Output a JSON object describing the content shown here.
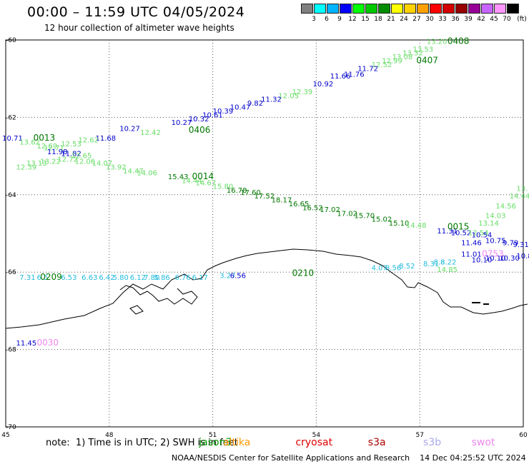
{
  "header": {
    "title": "00:00 – 11:59 UTC 04/05/2024",
    "subtitle": "12 hour collection of altimeter wave heights"
  },
  "legend": {
    "unit_label": "(ft)",
    "bins": [
      {
        "label": "3",
        "color": "#808080"
      },
      {
        "label": "6",
        "color": "#00ffff"
      },
      {
        "label": "9",
        "color": "#00b4ff"
      },
      {
        "label": "12",
        "color": "#0000ff"
      },
      {
        "label": "15",
        "color": "#00ff00"
      },
      {
        "label": "18",
        "color": "#00c800"
      },
      {
        "label": "21",
        "color": "#008c00"
      },
      {
        "label": "24",
        "color": "#ffff00"
      },
      {
        "label": "27",
        "color": "#ffd200"
      },
      {
        "label": "30",
        "color": "#ffa000"
      },
      {
        "label": "33",
        "color": "#ff0000"
      },
      {
        "label": "36",
        "color": "#d20000"
      },
      {
        "label": "39",
        "color": "#960000"
      },
      {
        "label": "42",
        "color": "#960096"
      },
      {
        "label": "45",
        "color": "#c864ff"
      },
      {
        "label": "70",
        "color": "#ff96ff"
      },
      {
        "label": "",
        "color": "#000000"
      }
    ]
  },
  "map": {
    "lon_range": [
      45,
      60
    ],
    "lat_range": [
      -60,
      -70
    ],
    "lon_ticks": [
      "45",
      "48",
      "51",
      "54",
      "57",
      "60"
    ],
    "lat_ticks": [
      "-60",
      "-62",
      "-64",
      "-66",
      "-68",
      "-70"
    ],
    "colors": {
      "light_green": "#66dd66",
      "dark_green": "#007700",
      "blue": "#0000cc",
      "cyan": "#22bbdd",
      "pink": "#ee88ee",
      "coast": "#000000"
    },
    "time_labels": [
      {
        "text": "0408",
        "lon": 57.8,
        "lat": -60.1,
        "c": "dark_green"
      },
      {
        "text": "0407",
        "lon": 56.9,
        "lat": -60.6,
        "c": "dark_green"
      },
      {
        "text": "0406",
        "lon": 50.3,
        "lat": -62.4,
        "c": "dark_green"
      },
      {
        "text": "0013",
        "lon": 45.8,
        "lat": -62.6,
        "c": "dark_green"
      },
      {
        "text": "0014",
        "lon": 50.4,
        "lat": -63.6,
        "c": "dark_green"
      },
      {
        "text": "0015",
        "lon": 57.8,
        "lat": -64.9,
        "c": "dark_green"
      },
      {
        "text": "0209",
        "lon": 46.0,
        "lat": -66.2,
        "c": "dark_green"
      },
      {
        "text": "0210",
        "lon": 53.3,
        "lat": -66.1,
        "c": "dark_green"
      },
      {
        "text": "0753",
        "lon": 58.8,
        "lat": -65.6,
        "c": "pink"
      },
      {
        "text": "0030",
        "lon": 45.9,
        "lat": -67.9,
        "c": "pink"
      }
    ],
    "values": [
      {
        "text": "13.20",
        "lon": 57.2,
        "lat": -60.1,
        "c": "light_green"
      },
      {
        "text": "13.53",
        "lon": 56.8,
        "lat": -60.3,
        "c": "light_green"
      },
      {
        "text": "13.32",
        "lon": 56.5,
        "lat": -60.4,
        "c": "light_green"
      },
      {
        "text": "13.08",
        "lon": 56.2,
        "lat": -60.5,
        "c": "light_green"
      },
      {
        "text": "12.99",
        "lon": 55.9,
        "lat": -60.6,
        "c": "light_green"
      },
      {
        "text": "12.52",
        "lon": 55.6,
        "lat": -60.7,
        "c": "light_green"
      },
      {
        "text": "11.72",
        "lon": 55.2,
        "lat": -60.8,
        "c": "blue"
      },
      {
        "text": "11.76",
        "lon": 54.8,
        "lat": -60.95,
        "c": "blue"
      },
      {
        "text": "11.66",
        "lon": 54.4,
        "lat": -61.0,
        "c": "blue"
      },
      {
        "text": "10.92",
        "lon": 53.9,
        "lat": -61.2,
        "c": "blue"
      },
      {
        "text": "12.39",
        "lon": 53.3,
        "lat": -61.4,
        "c": "light_green"
      },
      {
        "text": "12.05",
        "lon": 52.9,
        "lat": -61.5,
        "c": "light_green"
      },
      {
        "text": "11.32",
        "lon": 52.4,
        "lat": -61.6,
        "c": "blue"
      },
      {
        "text": "9.82",
        "lon": 52.0,
        "lat": -61.7,
        "c": "blue"
      },
      {
        "text": "10.47",
        "lon": 51.5,
        "lat": -61.8,
        "c": "blue"
      },
      {
        "text": "10.39",
        "lon": 51.0,
        "lat": -61.9,
        "c": "blue"
      },
      {
        "text": "10.61",
        "lon": 50.7,
        "lat": -62.0,
        "c": "blue"
      },
      {
        "text": "10.32",
        "lon": 50.3,
        "lat": -62.1,
        "c": "blue"
      },
      {
        "text": "10.27",
        "lon": 49.8,
        "lat": -62.2,
        "c": "blue"
      },
      {
        "text": "10.27",
        "lon": 48.3,
        "lat": -62.35,
        "c": "blue"
      },
      {
        "text": "12.42",
        "lon": 48.9,
        "lat": -62.45,
        "c": "light_green"
      },
      {
        "text": "11.68",
        "lon": 47.6,
        "lat": -62.6,
        "c": "blue"
      },
      {
        "text": "12.62",
        "lon": 47.1,
        "lat": -62.65,
        "c": "light_green"
      },
      {
        "text": "12.53",
        "lon": 46.6,
        "lat": -62.75,
        "c": "light_green"
      },
      {
        "text": "12.71",
        "lon": 46.1,
        "lat": -62.85,
        "c": "light_green"
      },
      {
        "text": "10.71",
        "lon": 44.9,
        "lat": -62.6,
        "c": "blue"
      },
      {
        "text": "13.62",
        "lon": 45.4,
        "lat": -62.7,
        "c": "light_green"
      },
      {
        "text": "12.69",
        "lon": 45.9,
        "lat": -62.8,
        "c": "light_green"
      },
      {
        "text": "11.98",
        "lon": 46.2,
        "lat": -62.95,
        "c": "blue"
      },
      {
        "text": "11.82",
        "lon": 46.6,
        "lat": -63.0,
        "c": "blue"
      },
      {
        "text": "12.65",
        "lon": 46.9,
        "lat": -63.05,
        "c": "light_green"
      },
      {
        "text": "13.22",
        "lon": 46.0,
        "lat": -63.2,
        "c": "light_green"
      },
      {
        "text": "13.13",
        "lon": 45.6,
        "lat": -63.25,
        "c": "light_green"
      },
      {
        "text": "12.39",
        "lon": 45.3,
        "lat": -63.35,
        "c": "light_green"
      },
      {
        "text": "12.72",
        "lon": 46.5,
        "lat": -63.15,
        "c": "light_green"
      },
      {
        "text": "12.06",
        "lon": 47.0,
        "lat": -63.2,
        "c": "light_green"
      },
      {
        "text": "14.07",
        "lon": 47.5,
        "lat": -63.25,
        "c": "light_green"
      },
      {
        "text": "13.92",
        "lon": 47.9,
        "lat": -63.35,
        "c": "light_green"
      },
      {
        "text": "14.47",
        "lon": 48.4,
        "lat": -63.45,
        "c": "light_green"
      },
      {
        "text": "14.06",
        "lon": 48.8,
        "lat": -63.5,
        "c": "light_green"
      },
      {
        "text": "15.43",
        "lon": 49.7,
        "lat": -63.6,
        "c": "dark_green"
      },
      {
        "text": "14.44",
        "lon": 50.1,
        "lat": -63.7,
        "c": "light_green"
      },
      {
        "text": "14.67",
        "lon": 50.5,
        "lat": -63.75,
        "c": "light_green"
      },
      {
        "text": "15.80",
        "lon": 51.0,
        "lat": -63.85,
        "c": "light_green"
      },
      {
        "text": "16.78",
        "lon": 51.4,
        "lat": -63.95,
        "c": "dark_green"
      },
      {
        "text": "17.60",
        "lon": 51.8,
        "lat": -64.0,
        "c": "dark_green"
      },
      {
        "text": "17.52",
        "lon": 52.2,
        "lat": -64.1,
        "c": "dark_green"
      },
      {
        "text": "18.17",
        "lon": 52.7,
        "lat": -64.2,
        "c": "dark_green"
      },
      {
        "text": "16.65",
        "lon": 53.2,
        "lat": -64.3,
        "c": "dark_green"
      },
      {
        "text": "16.52",
        "lon": 53.6,
        "lat": -64.4,
        "c": "dark_green"
      },
      {
        "text": "17.02",
        "lon": 54.1,
        "lat": -64.45,
        "c": "dark_green"
      },
      {
        "text": "17.02",
        "lon": 54.6,
        "lat": -64.55,
        "c": "dark_green"
      },
      {
        "text": "15.70",
        "lon": 55.1,
        "lat": -64.6,
        "c": "dark_green"
      },
      {
        "text": "15.02",
        "lon": 55.6,
        "lat": -64.7,
        "c": "dark_green"
      },
      {
        "text": "15.10",
        "lon": 56.1,
        "lat": -64.8,
        "c": "dark_green"
      },
      {
        "text": "14.48",
        "lon": 56.6,
        "lat": -64.85,
        "c": "light_green"
      },
      {
        "text": "13.14",
        "lon": 58.7,
        "lat": -64.8,
        "c": "light_green"
      },
      {
        "text": "14.03",
        "lon": 58.9,
        "lat": -64.6,
        "c": "light_green"
      },
      {
        "text": "14.56",
        "lon": 59.2,
        "lat": -64.35,
        "c": "light_green"
      },
      {
        "text": "14.44",
        "lon": 59.6,
        "lat": -64.1,
        "c": "light_green"
      },
      {
        "text": "13.",
        "lon": 59.8,
        "lat": -63.9,
        "c": "light_green"
      },
      {
        "text": "11.31",
        "lon": 57.5,
        "lat": -65.0,
        "c": "blue"
      },
      {
        "text": "10.52",
        "lon": 57.9,
        "lat": -65.05,
        "c": "blue"
      },
      {
        "text": "12.54",
        "lon": 58.4,
        "lat": -65.05,
        "c": "light_green"
      },
      {
        "text": "10.54",
        "lon": 58.5,
        "lat": -65.1,
        "c": "blue"
      },
      {
        "text": "11.46",
        "lon": 58.2,
        "lat": -65.3,
        "c": "blue"
      },
      {
        "text": "10.75",
        "lon": 58.9,
        "lat": -65.25,
        "c": "blue"
      },
      {
        "text": "9.79",
        "lon": 59.4,
        "lat": -65.3,
        "c": "blue"
      },
      {
        "text": "9.31",
        "lon": 59.7,
        "lat": -65.35,
        "c": "blue"
      },
      {
        "text": "11.01",
        "lon": 58.2,
        "lat": -65.6,
        "c": "blue"
      },
      {
        "text": "10.10",
        "lon": 58.5,
        "lat": -65.75,
        "c": "blue"
      },
      {
        "text": "10.10",
        "lon": 58.9,
        "lat": -65.7,
        "c": "blue"
      },
      {
        "text": "10.30",
        "lon": 59.3,
        "lat": -65.7,
        "c": "blue"
      },
      {
        "text": "10.8",
        "lon": 59.8,
        "lat": -65.65,
        "c": "blue"
      },
      {
        "text": "8.52",
        "lon": 56.4,
        "lat": -65.9,
        "c": "cyan"
      },
      {
        "text": "8.56",
        "lon": 56.0,
        "lat": -65.95,
        "c": "cyan"
      },
      {
        "text": "4.07",
        "lon": 55.6,
        "lat": -65.95,
        "c": "cyan"
      },
      {
        "text": "8.31",
        "lon": 57.1,
        "lat": -65.85,
        "c": "cyan"
      },
      {
        "text": "8.22",
        "lon": 57.6,
        "lat": -65.8,
        "c": "cyan"
      },
      {
        "text": "8.8",
        "lon": 57.4,
        "lat": -65.8,
        "c": "cyan"
      },
      {
        "text": "14.85",
        "lon": 57.5,
        "lat": -66.0,
        "c": "light_green"
      },
      {
        "text": "7.31",
        "lon": 45.4,
        "lat": -66.2,
        "c": "cyan"
      },
      {
        "text": "6.5",
        "lon": 45.9,
        "lat": -66.2,
        "c": "cyan"
      },
      {
        "text": "6.53",
        "lon": 46.6,
        "lat": -66.2,
        "c": "cyan"
      },
      {
        "text": "6.63",
        "lon": 47.2,
        "lat": -66.2,
        "c": "cyan"
      },
      {
        "text": "6.42",
        "lon": 47.7,
        "lat": -66.2,
        "c": "cyan"
      },
      {
        "text": "5.80",
        "lon": 48.1,
        "lat": -66.2,
        "c": "cyan"
      },
      {
        "text": "6.12",
        "lon": 48.6,
        "lat": -66.2,
        "c": "cyan"
      },
      {
        "text": "7.80",
        "lon": 49.0,
        "lat": -66.2,
        "c": "cyan"
      },
      {
        "text": "5.86",
        "lon": 49.3,
        "lat": -66.2,
        "c": "cyan"
      },
      {
        "text": "6.76",
        "lon": 49.9,
        "lat": -66.2,
        "c": "cyan"
      },
      {
        "text": "6.17",
        "lon": 50.4,
        "lat": -66.2,
        "c": "cyan"
      },
      {
        "text": "3.27",
        "lon": 51.2,
        "lat": -66.15,
        "c": "cyan"
      },
      {
        "text": "6.56",
        "lon": 51.5,
        "lat": -66.15,
        "c": "blue"
      },
      {
        "text": "11.45",
        "lon": 45.3,
        "lat": -67.9,
        "c": "blue"
      }
    ]
  },
  "footer": {
    "note": "note:  1) Time is in UTC; 2) SWH is in feet",
    "satellites": [
      {
        "name": "jason3",
        "color": "#009900",
        "lon": 50.6
      },
      {
        "name": "altika",
        "color": "#ff9900",
        "lon": 51.3
      },
      {
        "name": "cryosat",
        "color": "#dd0000",
        "lon": 53.4
      },
      {
        "name": "s3a",
        "color": "#aa0000",
        "lon": 55.5
      },
      {
        "name": "s3b",
        "color": "#aaaaee",
        "lon": 57.1
      },
      {
        "name": "swot",
        "color": "#ee88ee",
        "lon": 58.5
      }
    ],
    "credit": "NOAA/NESDIS Center for Satellite Applications and Research    14 Dec 04:25:52 UTC 2024"
  }
}
